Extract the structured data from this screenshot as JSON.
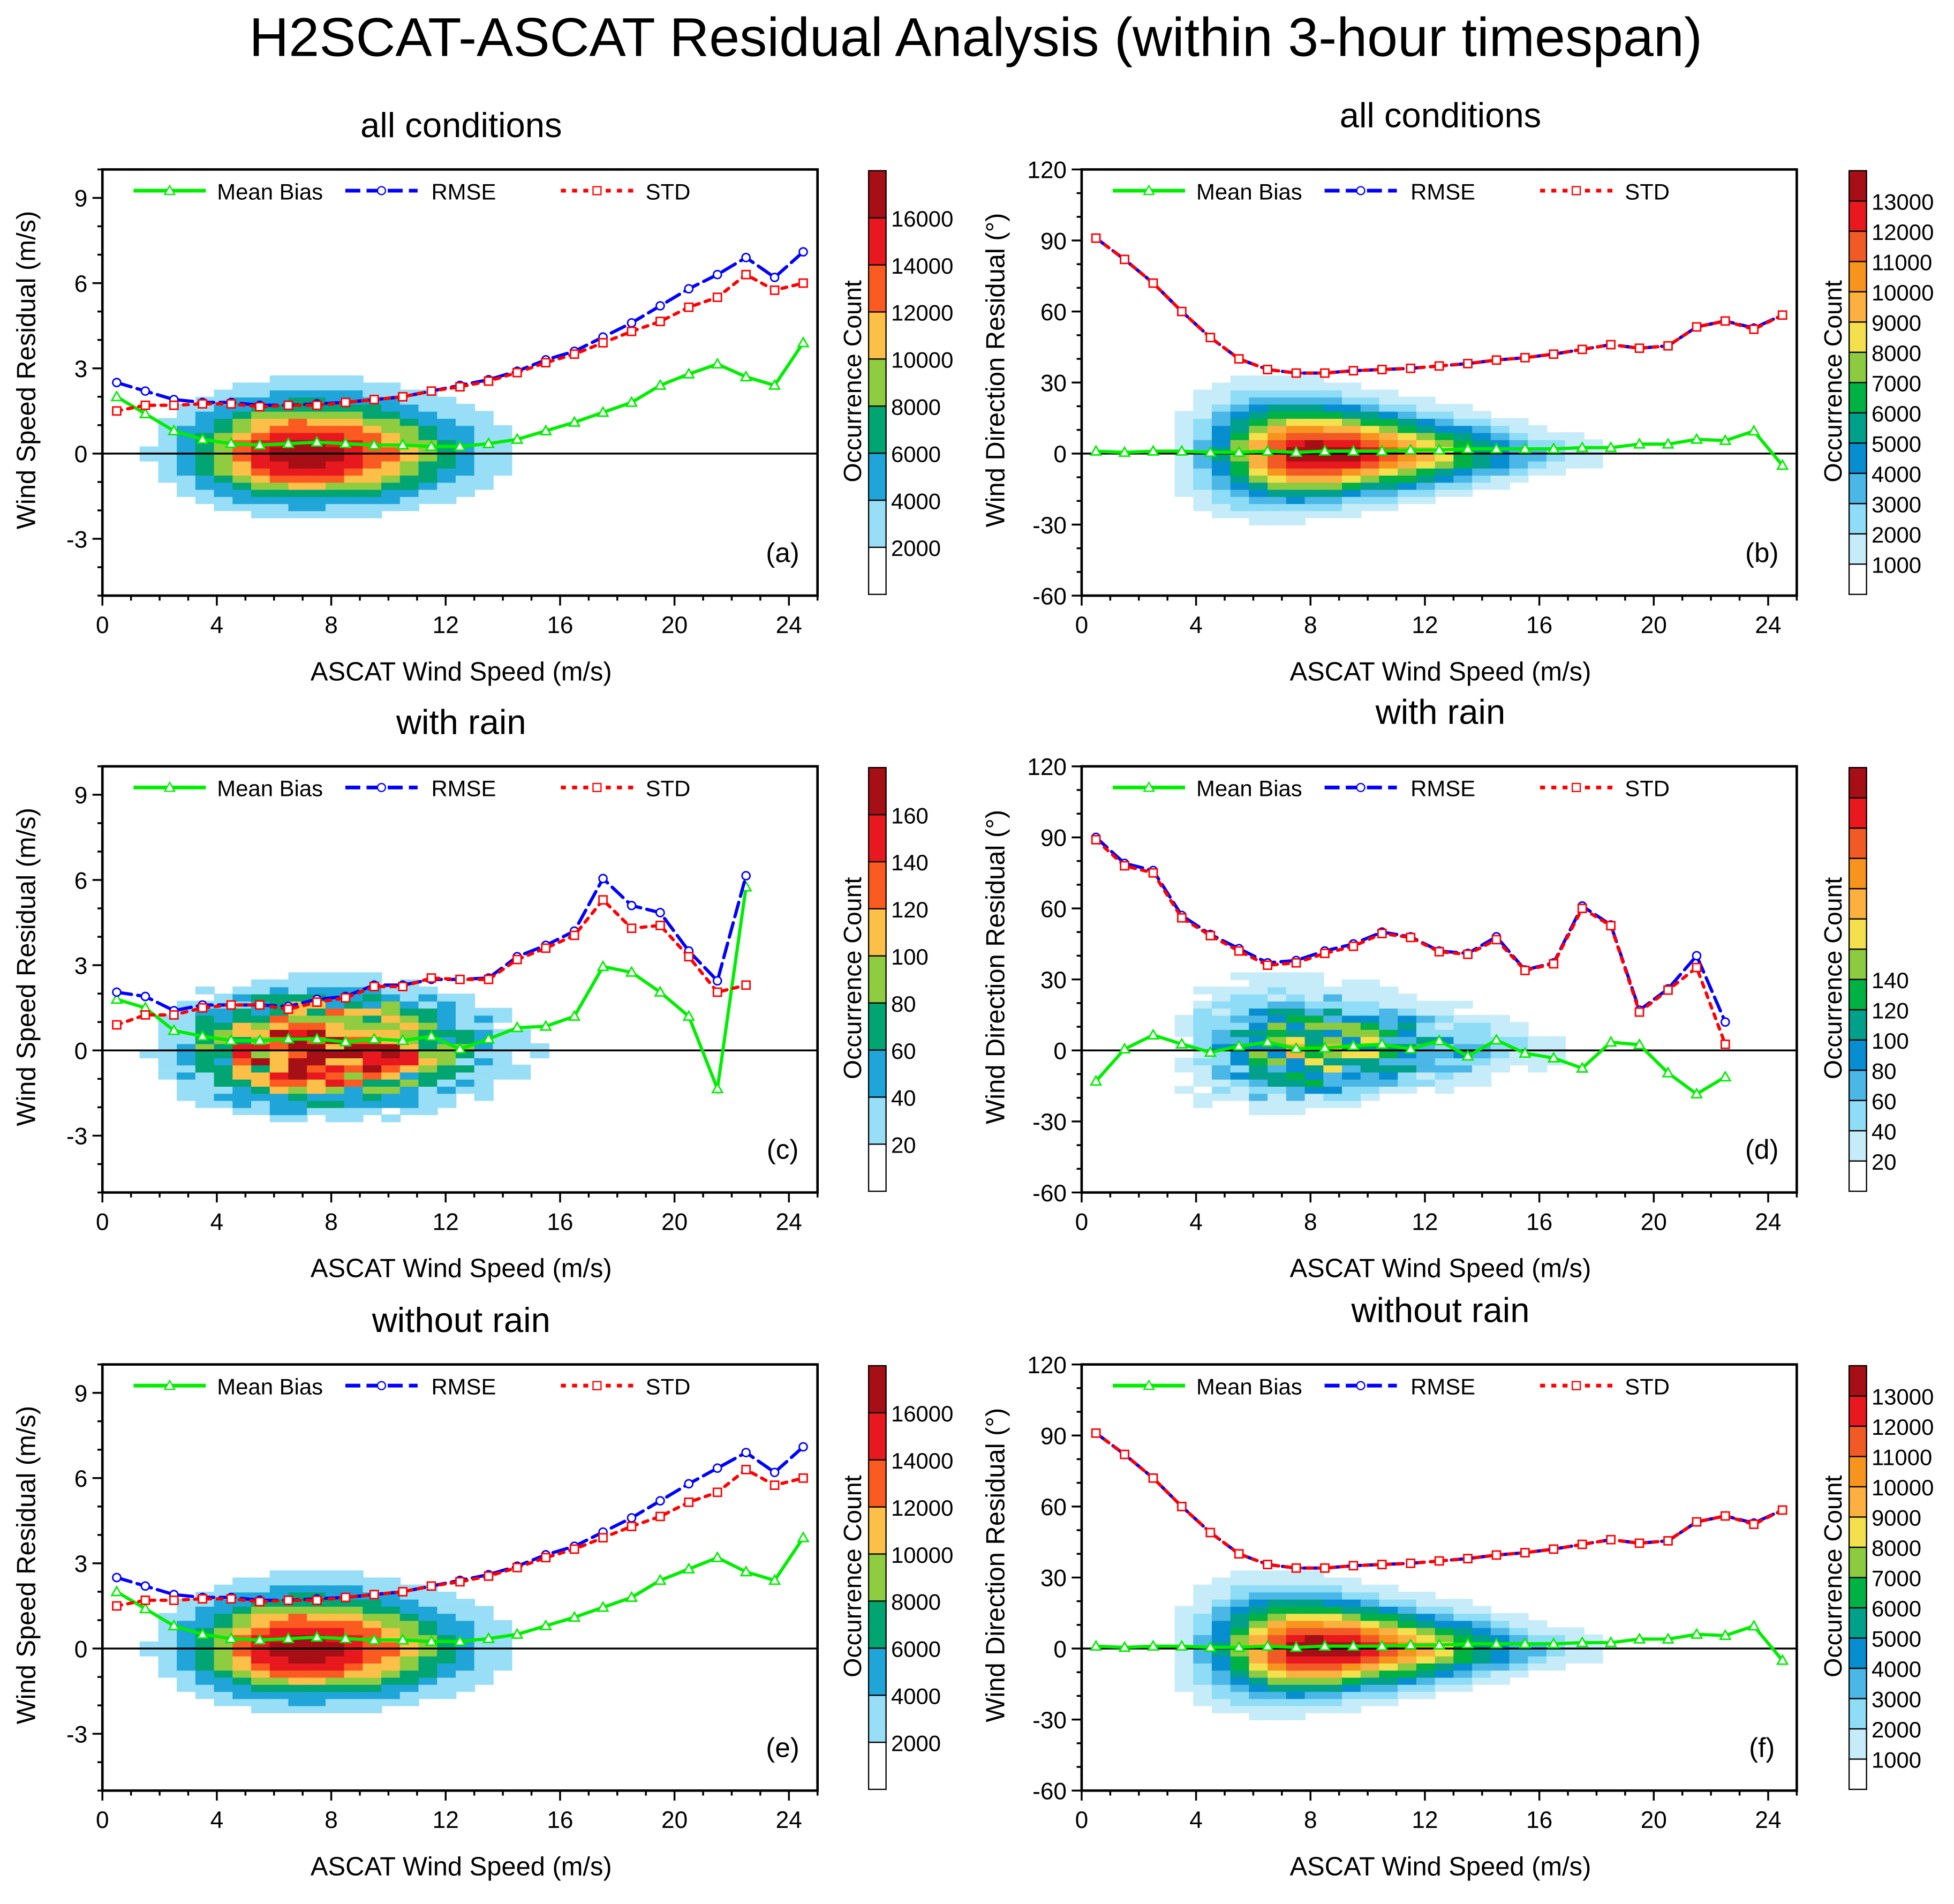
{
  "title": "H2SCAT-ASCAT Residual Analysis (within 3-hour timespan)",
  "legend": {
    "bias": "Mean Bias",
    "rmse": "RMSE",
    "std": "STD"
  },
  "colors": {
    "bias": "#00ee00",
    "rmse": "#0000ff",
    "std": "#ff0000"
  },
  "chart_data": [
    {
      "type": "heatmap+line",
      "panel_label": "(a)",
      "title": "all conditions",
      "xlabel": "ASCAT Wind Speed (m/s)",
      "ylabel": "Wind Speed Residual (m/s)",
      "xlim": [
        0,
        25
      ],
      "ylim": [
        -5,
        10
      ],
      "xticks": [
        0,
        4,
        8,
        12,
        16,
        20,
        24
      ],
      "yticks": [
        -3,
        0,
        3,
        6,
        9
      ],
      "x": [
        0.5,
        1.5,
        2.5,
        3.5,
        4.5,
        5.5,
        6.5,
        7.5,
        8.5,
        9.5,
        10.5,
        11.5,
        12.5,
        13.5,
        14.5,
        15.5,
        16.5,
        17.5,
        18.5,
        19.5,
        20.5,
        21.5,
        22.5,
        23.5,
        24.5
      ],
      "series": {
        "bias": [
          2.0,
          1.4,
          0.8,
          0.5,
          0.35,
          0.3,
          0.35,
          0.4,
          0.35,
          0.3,
          0.3,
          0.25,
          0.25,
          0.35,
          0.5,
          0.8,
          1.1,
          1.45,
          1.8,
          2.4,
          2.8,
          3.15,
          2.7,
          2.4,
          3.9
        ],
        "rmse": [
          2.5,
          2.2,
          1.9,
          1.8,
          1.8,
          1.7,
          1.7,
          1.75,
          1.8,
          1.9,
          2.0,
          2.2,
          2.4,
          2.6,
          2.9,
          3.3,
          3.6,
          4.1,
          4.6,
          5.2,
          5.8,
          6.3,
          6.9,
          6.2,
          7.1
        ],
        "std": [
          1.5,
          1.7,
          1.7,
          1.75,
          1.75,
          1.65,
          1.7,
          1.7,
          1.8,
          1.9,
          2.0,
          2.2,
          2.35,
          2.55,
          2.85,
          3.2,
          3.5,
          3.9,
          4.3,
          4.65,
          5.15,
          5.5,
          6.3,
          5.75,
          6.0
        ]
      },
      "colorbar": {
        "title": "Occurrence Count",
        "labels": [
          "2000",
          "4000",
          "6000",
          "8000",
          "10000",
          "12000",
          "14000",
          "16000"
        ],
        "colors": [
          "#ffffff",
          "#97def6",
          "#1fa5d8",
          "#00a572",
          "#8fcc3f",
          "#fcbf47",
          "#fb5b21",
          "#e8191e",
          "#a50f15"
        ]
      },
      "density": {
        "center": [
          7,
          0
        ],
        "sx": [
          2.6,
          3.6
        ],
        "sy": [
          1.3,
          1.1
        ],
        "peak": 17500,
        "noise": 0
      }
    },
    {
      "type": "heatmap+line",
      "panel_label": "(b)",
      "title": "all conditions",
      "xlabel": "ASCAT Wind Speed (m/s)",
      "ylabel": "Wind Direction Residual (°)",
      "xlim": [
        0,
        25
      ],
      "ylim": [
        -60,
        120
      ],
      "xticks": [
        0,
        4,
        8,
        12,
        16,
        20,
        24
      ],
      "yticks": [
        -60,
        -30,
        0,
        30,
        60,
        90,
        120
      ],
      "x": [
        0.5,
        1.5,
        2.5,
        3.5,
        4.5,
        5.5,
        6.5,
        7.5,
        8.5,
        9.5,
        10.5,
        11.5,
        12.5,
        13.5,
        14.5,
        15.5,
        16.5,
        17.5,
        18.5,
        19.5,
        20.5,
        21.5,
        22.5,
        23.5,
        24.5
      ],
      "series": {
        "bias": [
          1,
          0.5,
          1,
          1,
          0.5,
          0.5,
          1,
          0.5,
          1,
          1,
          1,
          1.5,
          1.5,
          2,
          2,
          2,
          2,
          2.5,
          2.5,
          4,
          4,
          6,
          5.5,
          9.5,
          -5
        ],
        "rmse": [
          91,
          82,
          72,
          60,
          49,
          40,
          35.5,
          34,
          34,
          35,
          35.5,
          36,
          37,
          38,
          39.5,
          40.5,
          42,
          44,
          46,
          44.5,
          45.5,
          53.5,
          56,
          53,
          58.5
        ],
        "std": [
          91,
          82,
          72,
          60,
          49,
          40,
          35.5,
          34,
          34,
          35,
          35.5,
          36,
          37,
          38,
          39.5,
          40.5,
          42,
          44,
          46,
          44.5,
          45.5,
          53.5,
          56,
          52.5,
          58.5
        ]
      },
      "colorbar": {
        "title": "Occurrence Count",
        "labels": [
          "1000",
          "2000",
          "3000",
          "4000",
          "5000",
          "6000",
          "7000",
          "8000",
          "9000",
          "10000",
          "11000",
          "12000",
          "13000"
        ],
        "colors": [
          "#ffffff",
          "#c7ecf9",
          "#8edcf5",
          "#4ab7e6",
          "#078ed0",
          "#00a08a",
          "#00b244",
          "#8ccb3f",
          "#f4e04d",
          "#fbb040",
          "#f7941d",
          "#f15a24",
          "#e8191e",
          "#a50f15"
        ]
      },
      "density": {
        "center": [
          8,
          0
        ],
        "sx": [
          2.2,
          4.6
        ],
        "sy": [
          17,
          15
        ],
        "peak": 13800,
        "noise": 0
      }
    },
    {
      "type": "heatmap+line",
      "panel_label": "(c)",
      "title": "with rain",
      "xlabel": "ASCAT Wind Speed (m/s)",
      "ylabel": "Wind Speed Residual (m/s)",
      "xlim": [
        0,
        25
      ],
      "ylim": [
        -5,
        10
      ],
      "xticks": [
        0,
        4,
        8,
        12,
        16,
        20,
        24
      ],
      "yticks": [
        -3,
        0,
        3,
        6,
        9
      ],
      "x": [
        0.5,
        1.5,
        2.5,
        3.5,
        4.5,
        5.5,
        6.5,
        7.5,
        8.5,
        9.5,
        10.5,
        11.5,
        12.5,
        13.5,
        14.5,
        15.5,
        16.5,
        17.5,
        18.5,
        19.5,
        20.5,
        21.5,
        22.5
      ],
      "series": {
        "bias": [
          1.8,
          1.5,
          0.7,
          0.5,
          0.35,
          0.35,
          0.4,
          0.4,
          0.3,
          0.4,
          0.35,
          0.5,
          0.05,
          0.4,
          0.8,
          0.85,
          1.2,
          2.95,
          2.75,
          2.05,
          1.2,
          -1.35,
          5.75
        ],
        "rmse": [
          2.05,
          1.9,
          1.4,
          1.6,
          1.6,
          1.6,
          1.55,
          1.8,
          1.9,
          2.3,
          2.3,
          2.5,
          2.5,
          2.55,
          3.3,
          3.7,
          4.2,
          6.05,
          5.1,
          4.85,
          3.5,
          2.45,
          6.15
        ],
        "std": [
          0.9,
          1.25,
          1.25,
          1.5,
          1.6,
          1.6,
          1.45,
          1.7,
          1.85,
          2.25,
          2.25,
          2.55,
          2.5,
          2.5,
          3.2,
          3.6,
          4.05,
          5.3,
          4.3,
          4.4,
          3.3,
          2.05,
          2.3
        ]
      },
      "colorbar": {
        "title": "Occurrence Count",
        "labels": [
          "20",
          "40",
          "60",
          "80",
          "100",
          "120",
          "140",
          "160"
        ],
        "colors": [
          "#ffffff",
          "#97def6",
          "#1fa5d8",
          "#00a572",
          "#8fcc3f",
          "#fcbf47",
          "#fb5b21",
          "#e8191e",
          "#a50f15"
        ]
      },
      "density": {
        "center": [
          7.5,
          0
        ],
        "sx": [
          2.8,
          3.6
        ],
        "sy": [
          1.3,
          1.2
        ],
        "peak": 175,
        "noise": 0.7
      }
    },
    {
      "type": "heatmap+line",
      "panel_label": "(d)",
      "title": "with rain",
      "xlabel": "ASCAT Wind Speed (m/s)",
      "ylabel": "Wind Direction Residual (°)",
      "xlim": [
        0,
        25
      ],
      "ylim": [
        -60,
        120
      ],
      "xticks": [
        0,
        4,
        8,
        12,
        16,
        20,
        24
      ],
      "yticks": [
        -60,
        -30,
        0,
        30,
        60,
        90,
        120
      ],
      "x": [
        0.5,
        1.5,
        2.5,
        3.5,
        4.5,
        5.5,
        6.5,
        7.5,
        8.5,
        9.5,
        10.5,
        11.5,
        12.5,
        13.5,
        14.5,
        15.5,
        16.5,
        17.5,
        18.5,
        19.5,
        20.5,
        21.5,
        22.5
      ],
      "series": {
        "bias": [
          -13,
          0.6,
          6.5,
          2.7,
          -0.8,
          1.8,
          3.5,
          0.8,
          1,
          2,
          2.6,
          0.6,
          4.1,
          -2.4,
          4.4,
          -1.2,
          -3.2,
          -7.5,
          3.5,
          2.4,
          -9.5,
          -18.4,
          -11.2
        ],
        "rmse": [
          90,
          79,
          76,
          57,
          49,
          43,
          37,
          38,
          42,
          45,
          50,
          48,
          42,
          41,
          48,
          34,
          37,
          61,
          53,
          17,
          26,
          40,
          12
        ],
        "std": [
          89,
          78,
          75,
          56,
          48.5,
          42,
          36,
          37,
          41,
          44,
          49.4,
          47.7,
          41.7,
          40.6,
          46.8,
          33.8,
          36.6,
          60,
          52.7,
          16.2,
          25.5,
          35,
          2.6
        ]
      },
      "colorbar": {
        "title": "Occurrence Count",
        "labels": [
          "20",
          "40",
          "60",
          "80",
          "100",
          "120",
          "140"
        ],
        "colors": [
          "#ffffff",
          "#c7ecf9",
          "#8edcf5",
          "#4ab7e6",
          "#078ed0",
          "#00a08a",
          "#00b244",
          "#8ccb3f",
          "#f4e04d",
          "#fbb040",
          "#f7941d",
          "#f15a24",
          "#e8191e",
          "#a50f15"
        ]
      },
      "density": {
        "center": [
          8,
          0
        ],
        "sx": [
          2.4,
          4.4
        ],
        "sy": [
          19,
          16
        ],
        "peak": 150,
        "noise": 0.8
      }
    },
    {
      "type": "heatmap+line",
      "panel_label": "(e)",
      "title": "without rain",
      "xlabel": "ASCAT Wind Speed (m/s)",
      "ylabel": "Wind Speed Residual (m/s)",
      "xlim": [
        0,
        25
      ],
      "ylim": [
        -5,
        10
      ],
      "xticks": [
        0,
        4,
        8,
        12,
        16,
        20,
        24
      ],
      "yticks": [
        -3,
        0,
        3,
        6,
        9
      ],
      "x": [
        0.5,
        1.5,
        2.5,
        3.5,
        4.5,
        5.5,
        6.5,
        7.5,
        8.5,
        9.5,
        10.5,
        11.5,
        12.5,
        13.5,
        14.5,
        15.5,
        16.5,
        17.5,
        18.5,
        19.5,
        20.5,
        21.5,
        22.5,
        23.5,
        24.5
      ],
      "series": {
        "bias": [
          2.0,
          1.4,
          0.8,
          0.5,
          0.35,
          0.3,
          0.35,
          0.4,
          0.35,
          0.3,
          0.3,
          0.25,
          0.25,
          0.35,
          0.5,
          0.8,
          1.1,
          1.45,
          1.8,
          2.4,
          2.8,
          3.2,
          2.7,
          2.4,
          3.9
        ],
        "rmse": [
          2.5,
          2.2,
          1.9,
          1.8,
          1.8,
          1.7,
          1.7,
          1.75,
          1.8,
          1.9,
          2.0,
          2.2,
          2.4,
          2.6,
          2.9,
          3.3,
          3.6,
          4.1,
          4.6,
          5.2,
          5.8,
          6.35,
          6.9,
          6.2,
          7.1
        ],
        "std": [
          1.5,
          1.7,
          1.7,
          1.75,
          1.75,
          1.65,
          1.7,
          1.7,
          1.8,
          1.9,
          2.0,
          2.2,
          2.35,
          2.55,
          2.85,
          3.2,
          3.5,
          3.9,
          4.3,
          4.65,
          5.15,
          5.5,
          6.3,
          5.75,
          6.0
        ]
      },
      "colorbar": {
        "title": "Occurrence Count",
        "labels": [
          "2000",
          "4000",
          "6000",
          "8000",
          "10000",
          "12000",
          "14000",
          "16000"
        ],
        "colors": [
          "#ffffff",
          "#97def6",
          "#1fa5d8",
          "#00a572",
          "#8fcc3f",
          "#fcbf47",
          "#fb5b21",
          "#e8191e",
          "#a50f15"
        ]
      },
      "density": {
        "center": [
          7,
          0
        ],
        "sx": [
          2.6,
          3.6
        ],
        "sy": [
          1.3,
          1.1
        ],
        "peak": 17500,
        "noise": 0
      }
    },
    {
      "type": "heatmap+line",
      "panel_label": "(f)",
      "title": "without rain",
      "xlabel": "ASCAT Wind Speed (m/s)",
      "ylabel": "Wind Direction Residual (°)",
      "xlim": [
        0,
        25
      ],
      "ylim": [
        -60,
        120
      ],
      "xticks": [
        0,
        4,
        8,
        12,
        16,
        20,
        24
      ],
      "yticks": [
        -60,
        -30,
        0,
        30,
        60,
        90,
        120
      ],
      "x": [
        0.5,
        1.5,
        2.5,
        3.5,
        4.5,
        5.5,
        6.5,
        7.5,
        8.5,
        9.5,
        10.5,
        11.5,
        12.5,
        13.5,
        14.5,
        15.5,
        16.5,
        17.5,
        18.5,
        19.5,
        20.5,
        21.5,
        22.5,
        23.5,
        24.5
      ],
      "series": {
        "bias": [
          1,
          0.5,
          1,
          1,
          0.5,
          0.5,
          1,
          0.5,
          1,
          1,
          1,
          1.5,
          1.5,
          2,
          2,
          2,
          2,
          2.5,
          2.5,
          4,
          4,
          6,
          5.5,
          9.5,
          -5
        ],
        "rmse": [
          91,
          82,
          72,
          60,
          49,
          40,
          35.5,
          34,
          34,
          35,
          35.5,
          36,
          37,
          38,
          39.5,
          40.5,
          42,
          44,
          46,
          44.5,
          45.5,
          53.5,
          56,
          53,
          58.5
        ],
        "std": [
          91,
          82,
          72,
          60,
          49,
          40,
          35.5,
          34,
          34,
          35,
          35.5,
          36,
          37,
          38,
          39.5,
          40.5,
          42,
          44,
          46,
          44.5,
          45.5,
          53.5,
          56,
          52.5,
          58.5
        ]
      },
      "colorbar": {
        "title": "Occurrence Count",
        "labels": [
          "1000",
          "2000",
          "3000",
          "4000",
          "5000",
          "6000",
          "7000",
          "8000",
          "9000",
          "10000",
          "11000",
          "12000",
          "13000"
        ],
        "colors": [
          "#ffffff",
          "#c7ecf9",
          "#8edcf5",
          "#4ab7e6",
          "#078ed0",
          "#00a08a",
          "#00b244",
          "#8ccb3f",
          "#f4e04d",
          "#fbb040",
          "#f7941d",
          "#f15a24",
          "#e8191e",
          "#a50f15"
        ]
      },
      "density": {
        "center": [
          8,
          0
        ],
        "sx": [
          2.2,
          4.6
        ],
        "sy": [
          17,
          15
        ],
        "peak": 13800,
        "noise": 0
      }
    }
  ]
}
